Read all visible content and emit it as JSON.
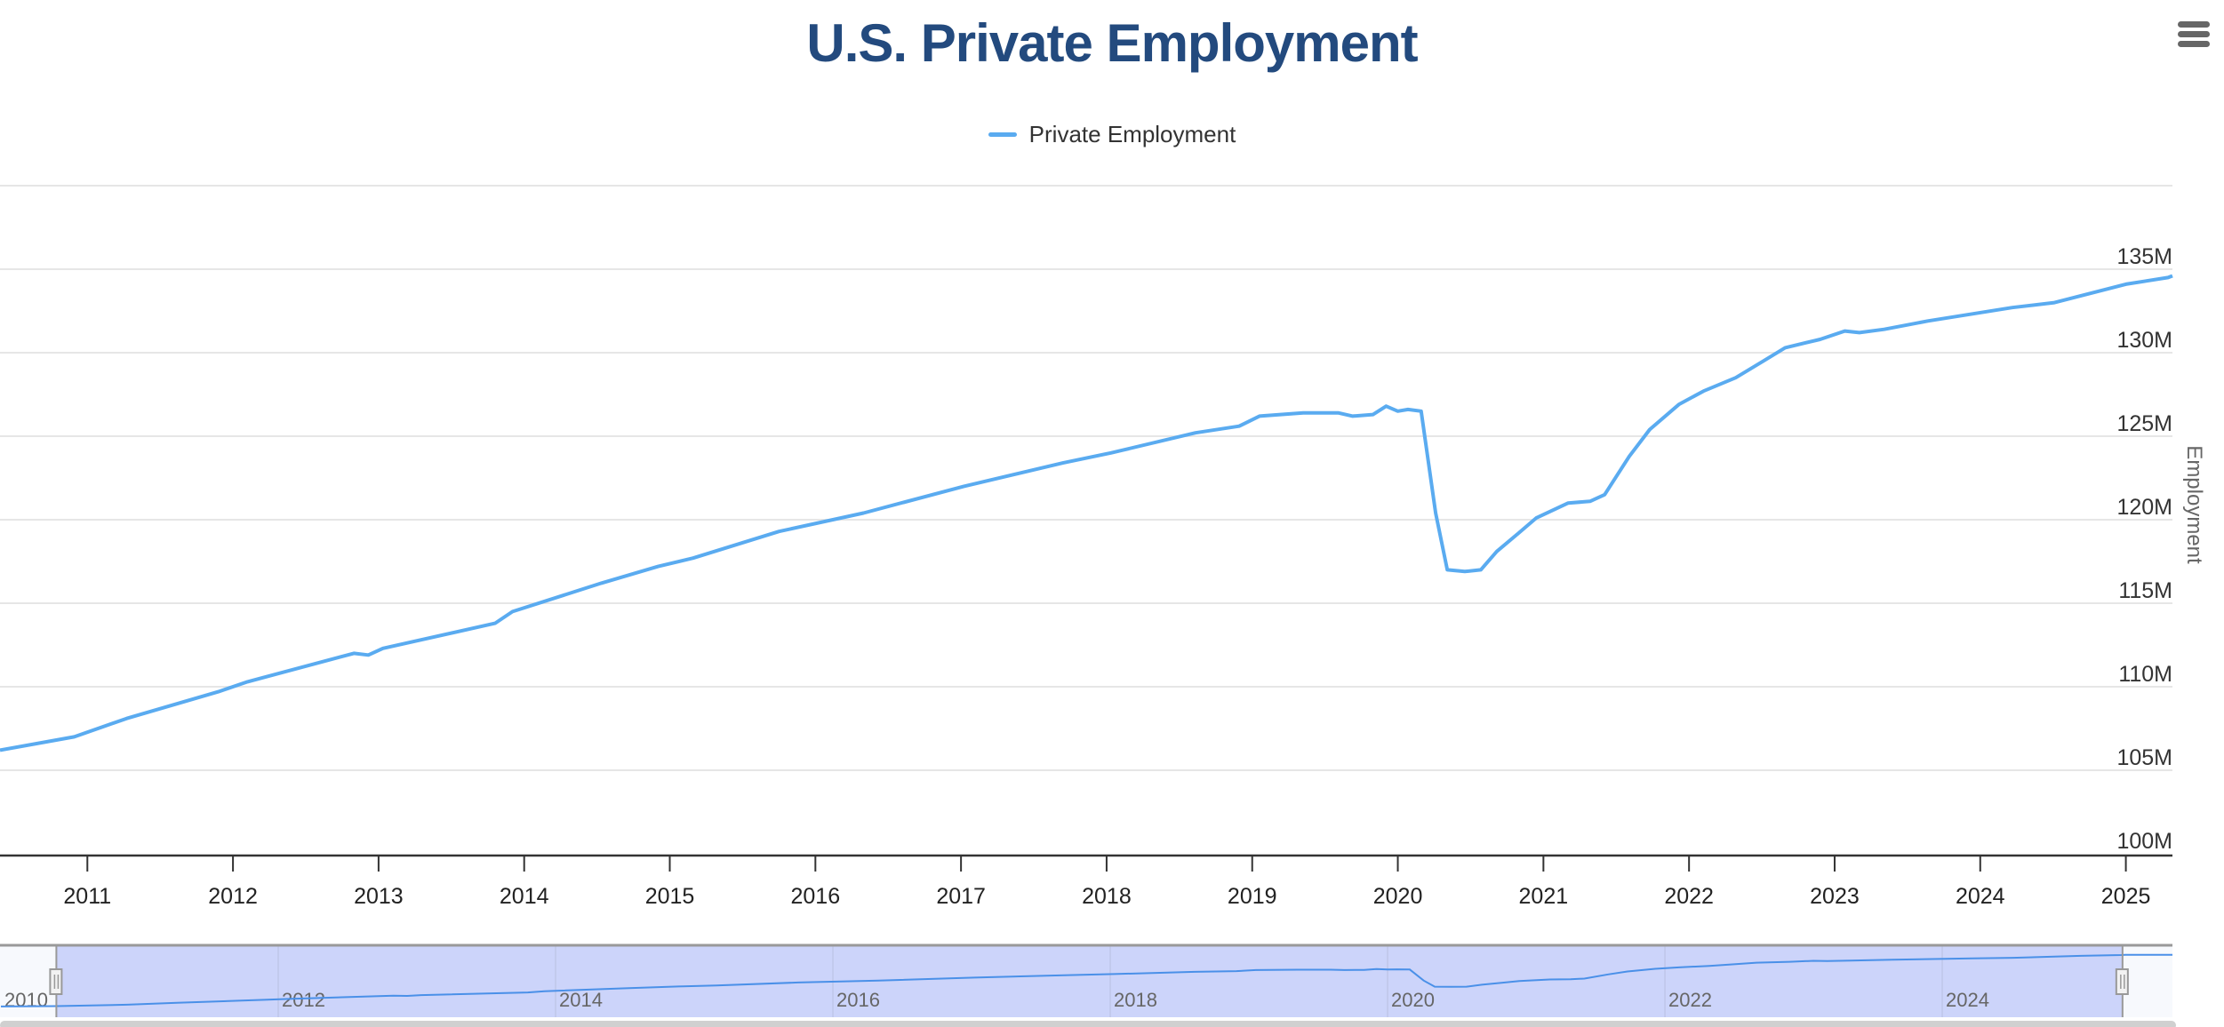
{
  "chart_data": {
    "type": "line",
    "title": "U.S. Private Employment",
    "xlabel": "",
    "ylabel": "Employment",
    "legend": {
      "position": "top-center",
      "entries": [
        "Private Employment"
      ]
    },
    "grid": true,
    "xlim": [
      2010.4,
      2025.32
    ],
    "ylim": [
      100,
      140
    ],
    "y_ticks": [
      100,
      105,
      110,
      115,
      120,
      125,
      130,
      135,
      140
    ],
    "y_tick_labels": [
      "100M",
      "105M",
      "110M",
      "115M",
      "120M",
      "125M",
      "130M",
      "135M",
      ""
    ],
    "x_ticks": [
      2011,
      2012,
      2013,
      2014,
      2015,
      2016,
      2017,
      2018,
      2019,
      2020,
      2021,
      2022,
      2023,
      2024,
      2025
    ],
    "x_tick_labels": [
      "2011",
      "2012",
      "2013",
      "2014",
      "2015",
      "2016",
      "2017",
      "2018",
      "2019",
      "2020",
      "2021",
      "2022",
      "2023",
      "2024",
      "2025"
    ],
    "series": [
      {
        "name": "Private Employment",
        "color": "#5aabf0",
        "unit": "millions",
        "points": [
          [
            2010.4,
            106.2
          ],
          [
            2010.91,
            107.0
          ],
          [
            2011.27,
            108.1
          ],
          [
            2011.9,
            109.7
          ],
          [
            2012.1,
            110.3
          ],
          [
            2012.83,
            112.0
          ],
          [
            2012.93,
            111.9
          ],
          [
            2013.03,
            112.3
          ],
          [
            2013.8,
            113.8
          ],
          [
            2013.92,
            114.5
          ],
          [
            2014.53,
            116.2
          ],
          [
            2014.92,
            117.2
          ],
          [
            2015.16,
            117.7
          ],
          [
            2015.75,
            119.3
          ],
          [
            2016.33,
            120.4
          ],
          [
            2017.02,
            122.0
          ],
          [
            2017.7,
            123.4
          ],
          [
            2018.03,
            124.0
          ],
          [
            2018.61,
            125.2
          ],
          [
            2018.91,
            125.6
          ],
          [
            2019.05,
            126.2
          ],
          [
            2019.35,
            126.4
          ],
          [
            2019.59,
            126.4
          ],
          [
            2019.69,
            126.2
          ],
          [
            2019.83,
            126.3
          ],
          [
            2019.92,
            126.8
          ],
          [
            2020.0,
            126.5
          ],
          [
            2020.07,
            126.6
          ],
          [
            2020.16,
            126.5
          ],
          [
            2020.26,
            120.4
          ],
          [
            2020.34,
            117.0
          ],
          [
            2020.46,
            116.9
          ],
          [
            2020.57,
            117.0
          ],
          [
            2020.68,
            118.1
          ],
          [
            2020.83,
            119.2
          ],
          [
            2020.95,
            120.1
          ],
          [
            2021.17,
            121.0
          ],
          [
            2021.32,
            121.1
          ],
          [
            2021.42,
            121.5
          ],
          [
            2021.59,
            123.8
          ],
          [
            2021.73,
            125.4
          ],
          [
            2021.93,
            126.9
          ],
          [
            2022.1,
            127.7
          ],
          [
            2022.32,
            128.5
          ],
          [
            2022.51,
            129.5
          ],
          [
            2022.66,
            130.3
          ],
          [
            2022.9,
            130.8
          ],
          [
            2023.07,
            131.3
          ],
          [
            2023.17,
            131.2
          ],
          [
            2023.34,
            131.4
          ],
          [
            2023.64,
            131.9
          ],
          [
            2024.22,
            132.7
          ],
          [
            2024.51,
            133.0
          ],
          [
            2025.0,
            134.1
          ],
          [
            2025.29,
            134.5
          ],
          [
            2025.32,
            134.6
          ]
        ]
      }
    ],
    "navigator": {
      "x_range": [
        2010.0,
        2025.66
      ],
      "selected_range": [
        2010.4,
        2025.3
      ],
      "tick_labels": [
        "2010",
        "2012",
        "2014",
        "2016",
        "2018",
        "2020",
        "2022",
        "2024"
      ]
    }
  }
}
